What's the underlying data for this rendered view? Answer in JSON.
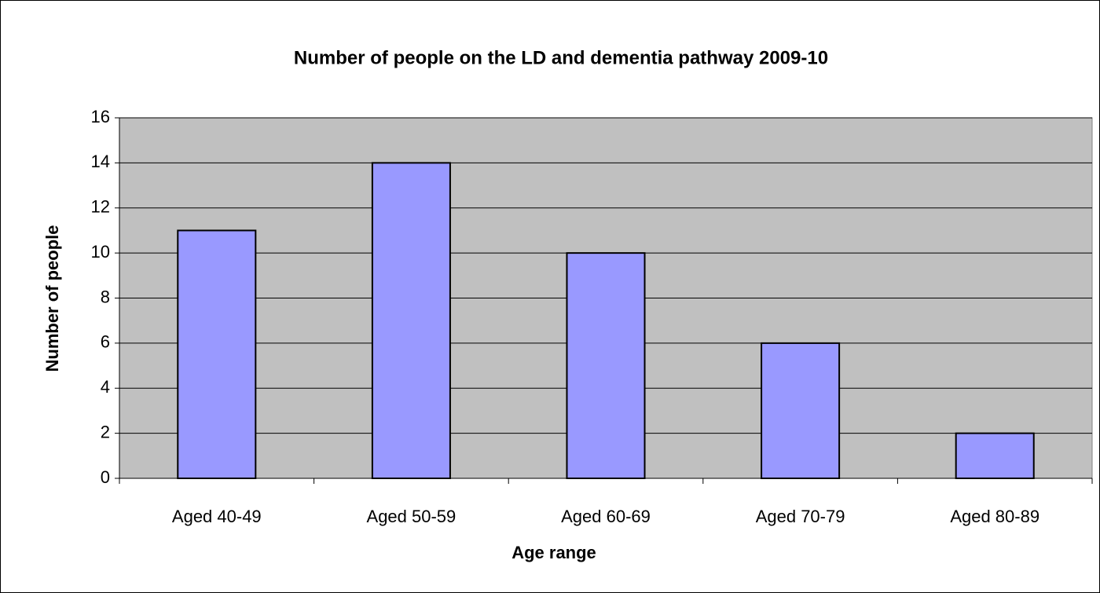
{
  "chart_data": {
    "type": "bar",
    "title": "Number of people on the LD and dementia pathway 2009-10",
    "x_label": "Age range",
    "y_label": "Number of people",
    "categories": [
      "Aged 40-49",
      "Aged 50-59",
      "Aged 60-69",
      "Aged 70-79",
      "Aged 80-89"
    ],
    "values": [
      11,
      14,
      10,
      6,
      2
    ],
    "color": "#9999ff",
    "ylim": [
      0,
      16
    ],
    "yticks": [
      0,
      2,
      4,
      6,
      8,
      10,
      12,
      14,
      16
    ],
    "grid": true
  }
}
